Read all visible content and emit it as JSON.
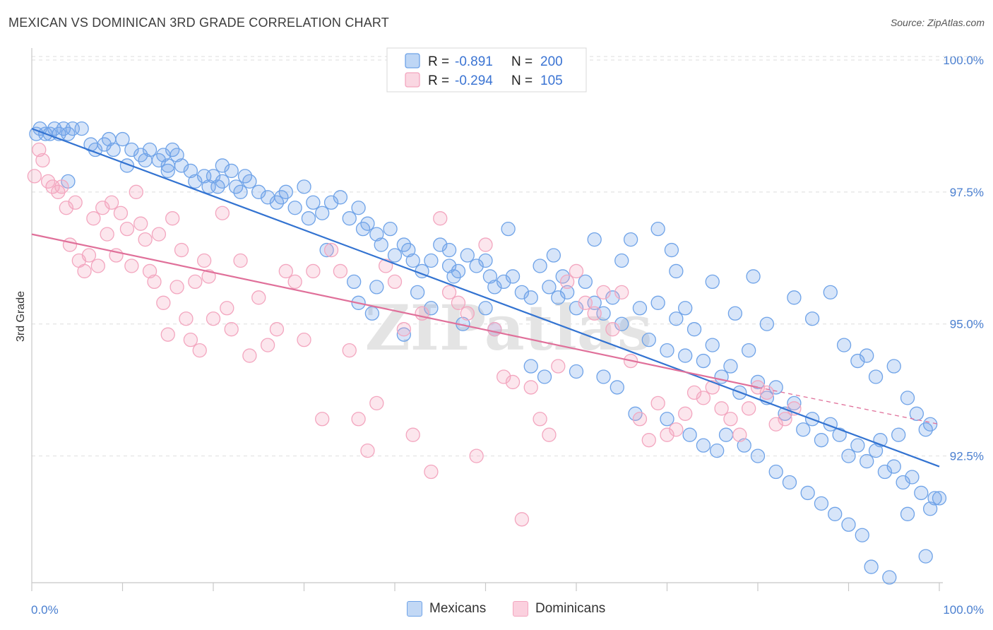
{
  "header": {
    "title": "MEXICAN VS DOMINICAN 3RD GRADE CORRELATION CHART",
    "source": "Source: ZipAtlas.com"
  },
  "watermark": "ZIPatlas",
  "chart_data": {
    "type": "scatter",
    "xlabel": "",
    "ylabel": "3rd Grade",
    "xlim": [
      0,
      100
    ],
    "ylim": [
      90.1,
      100.2
    ],
    "x_tick_labels": [
      "0.0%",
      "100.0%"
    ],
    "y_ticks": [
      92.5,
      95.0,
      97.5,
      100.0
    ],
    "y_tick_labels": [
      "92.5%",
      "95.0%",
      "97.5%",
      "100.0%"
    ],
    "grid": true,
    "legend_position": "top-center",
    "series": [
      {
        "name": "Mexicans",
        "color": "#6fa3e8",
        "line_color": "#3373d1",
        "R": "-0.891",
        "N": "200",
        "trend": {
          "x0": 0,
          "y0": 98.7,
          "x1": 100,
          "y1": 92.3
        },
        "points": [
          [
            0.5,
            98.6
          ],
          [
            0.9,
            98.7
          ],
          [
            1.5,
            98.6
          ],
          [
            2.0,
            98.6
          ],
          [
            2.5,
            98.7
          ],
          [
            3.0,
            98.6
          ],
          [
            3.5,
            98.7
          ],
          [
            4.0,
            98.6
          ],
          [
            4.5,
            98.7
          ],
          [
            5.5,
            98.7
          ],
          [
            6.5,
            98.4
          ],
          [
            7.0,
            98.3
          ],
          [
            8.0,
            98.4
          ],
          [
            8.5,
            98.5
          ],
          [
            9.0,
            98.3
          ],
          [
            10.0,
            98.5
          ],
          [
            11.0,
            98.3
          ],
          [
            12.0,
            98.2
          ],
          [
            12.5,
            98.1
          ],
          [
            13.0,
            98.3
          ],
          [
            14.0,
            98.1
          ],
          [
            14.5,
            98.2
          ],
          [
            15.0,
            98.0
          ],
          [
            15.5,
            98.3
          ],
          [
            16.0,
            98.2
          ],
          [
            16.5,
            98.0
          ],
          [
            17.5,
            97.9
          ],
          [
            18.0,
            97.7
          ],
          [
            19.0,
            97.8
          ],
          [
            19.5,
            97.6
          ],
          [
            20.0,
            97.8
          ],
          [
            20.5,
            97.6
          ],
          [
            21.0,
            97.7
          ],
          [
            22.0,
            97.9
          ],
          [
            22.5,
            97.6
          ],
          [
            23.0,
            97.5
          ],
          [
            24.0,
            97.7
          ],
          [
            25.0,
            97.5
          ],
          [
            26.0,
            97.4
          ],
          [
            27.0,
            97.3
          ],
          [
            28.0,
            97.5
          ],
          [
            29.0,
            97.2
          ],
          [
            30.0,
            97.6
          ],
          [
            31.0,
            97.3
          ],
          [
            32.0,
            97.1
          ],
          [
            33.0,
            97.3
          ],
          [
            34.0,
            97.4
          ],
          [
            35.0,
            97.0
          ],
          [
            36.0,
            97.2
          ],
          [
            36.5,
            96.8
          ],
          [
            37.0,
            96.9
          ],
          [
            38.0,
            96.7
          ],
          [
            38.5,
            96.5
          ],
          [
            39.5,
            96.8
          ],
          [
            40.0,
            96.3
          ],
          [
            41.0,
            96.5
          ],
          [
            41.5,
            96.4
          ],
          [
            42.0,
            96.2
          ],
          [
            43.0,
            96.0
          ],
          [
            44.0,
            96.2
          ],
          [
            45.0,
            96.5
          ],
          [
            46.0,
            96.1
          ],
          [
            46.5,
            95.9
          ],
          [
            47.0,
            96.0
          ],
          [
            48.0,
            96.3
          ],
          [
            49.0,
            96.1
          ],
          [
            50.0,
            96.2
          ],
          [
            50.5,
            95.9
          ],
          [
            51.0,
            95.7
          ],
          [
            52.0,
            95.8
          ],
          [
            53.0,
            95.9
          ],
          [
            54.0,
            95.6
          ],
          [
            55.0,
            95.5
          ],
          [
            56.0,
            96.1
          ],
          [
            57.0,
            95.7
          ],
          [
            58.0,
            95.5
          ],
          [
            59.0,
            95.6
          ],
          [
            60.0,
            95.3
          ],
          [
            61.0,
            95.8
          ],
          [
            62.0,
            95.4
          ],
          [
            63.0,
            95.2
          ],
          [
            64.0,
            95.5
          ],
          [
            65.0,
            95.0
          ],
          [
            66.0,
            96.6
          ],
          [
            67.0,
            95.3
          ],
          [
            68.0,
            94.7
          ],
          [
            69.0,
            95.4
          ],
          [
            70.0,
            94.5
          ],
          [
            71.0,
            95.1
          ],
          [
            72.0,
            94.4
          ],
          [
            73.0,
            94.9
          ],
          [
            74.0,
            94.3
          ],
          [
            75.0,
            94.6
          ],
          [
            76.0,
            94.0
          ],
          [
            77.0,
            94.2
          ],
          [
            78.0,
            93.7
          ],
          [
            79.0,
            94.5
          ],
          [
            80.0,
            93.9
          ],
          [
            81.0,
            93.6
          ],
          [
            82.0,
            93.8
          ],
          [
            83.0,
            93.3
          ],
          [
            84.0,
            93.5
          ],
          [
            85.0,
            93.0
          ],
          [
            86.0,
            93.2
          ],
          [
            87.0,
            92.8
          ],
          [
            88.0,
            93.1
          ],
          [
            89.0,
            92.9
          ],
          [
            90.0,
            92.5
          ],
          [
            91.0,
            92.7
          ],
          [
            92.0,
            92.4
          ],
          [
            93.0,
            92.6
          ],
          [
            94.0,
            92.2
          ],
          [
            95.0,
            92.3
          ],
          [
            96.0,
            92.0
          ],
          [
            97.0,
            92.1
          ],
          [
            98.0,
            91.8
          ],
          [
            99.0,
            91.5
          ],
          [
            100.0,
            91.7
          ],
          [
            4.0,
            97.7
          ],
          [
            10.5,
            98.0
          ],
          [
            15.0,
            97.9
          ],
          [
            21.0,
            98.0
          ],
          [
            23.5,
            97.8
          ],
          [
            27.5,
            97.4
          ],
          [
            30.5,
            97.0
          ],
          [
            32.5,
            96.4
          ],
          [
            35.5,
            95.8
          ],
          [
            36.0,
            95.4
          ],
          [
            37.5,
            95.2
          ],
          [
            41.0,
            94.8
          ],
          [
            44.0,
            95.3
          ],
          [
            47.5,
            95.0
          ],
          [
            50.0,
            95.3
          ],
          [
            51.0,
            94.9
          ],
          [
            55.0,
            94.2
          ],
          [
            56.5,
            94.0
          ],
          [
            60.0,
            94.1
          ],
          [
            63.0,
            94.0
          ],
          [
            64.5,
            93.8
          ],
          [
            66.5,
            93.3
          ],
          [
            70.0,
            93.2
          ],
          [
            72.5,
            92.9
          ],
          [
            74.0,
            92.7
          ],
          [
            75.5,
            92.6
          ],
          [
            76.5,
            92.9
          ],
          [
            78.5,
            92.7
          ],
          [
            80.0,
            92.5
          ],
          [
            82.0,
            92.2
          ],
          [
            83.5,
            92.0
          ],
          [
            85.5,
            91.8
          ],
          [
            87.0,
            91.6
          ],
          [
            88.5,
            91.4
          ],
          [
            90.0,
            91.2
          ],
          [
            91.5,
            91.0
          ],
          [
            92.5,
            90.4
          ],
          [
            94.5,
            90.2
          ],
          [
            96.5,
            91.4
          ],
          [
            98.5,
            90.6
          ],
          [
            99.5,
            91.7
          ],
          [
            38.0,
            95.7
          ],
          [
            42.5,
            95.6
          ],
          [
            46.0,
            96.4
          ],
          [
            52.5,
            96.8
          ],
          [
            57.5,
            96.3
          ],
          [
            58.5,
            95.9
          ],
          [
            62.0,
            96.6
          ],
          [
            65.0,
            96.2
          ],
          [
            69.0,
            96.8
          ],
          [
            70.5,
            96.4
          ],
          [
            71.0,
            96.0
          ],
          [
            72.0,
            95.3
          ],
          [
            75.0,
            95.8
          ],
          [
            77.5,
            95.2
          ],
          [
            79.5,
            95.9
          ],
          [
            81.0,
            95.0
          ],
          [
            84.0,
            95.5
          ],
          [
            86.0,
            95.1
          ],
          [
            88.0,
            95.6
          ],
          [
            89.5,
            94.6
          ],
          [
            91.0,
            94.3
          ],
          [
            92.0,
            94.4
          ],
          [
            93.0,
            94.0
          ],
          [
            95.0,
            94.2
          ],
          [
            96.5,
            93.6
          ],
          [
            97.5,
            93.3
          ],
          [
            98.5,
            93.0
          ],
          [
            99.0,
            93.1
          ],
          [
            93.5,
            92.8
          ],
          [
            95.5,
            92.9
          ]
        ]
      },
      {
        "name": "Dominicans",
        "color": "#f3a6bf",
        "line_color": "#e0709a",
        "R": "-0.294",
        "N": "105",
        "trend": {
          "x0": 0,
          "y0": 96.7,
          "x1": 80,
          "y1": 93.8
        },
        "trend_dashed": {
          "x0": 80,
          "y0": 93.8,
          "x1": 100,
          "y1": 93.1
        },
        "points": [
          [
            0.3,
            97.8
          ],
          [
            0.8,
            98.3
          ],
          [
            1.2,
            98.1
          ],
          [
            1.8,
            97.7
          ],
          [
            2.3,
            97.6
          ],
          [
            2.9,
            97.5
          ],
          [
            3.3,
            97.6
          ],
          [
            3.8,
            97.2
          ],
          [
            4.2,
            96.5
          ],
          [
            4.8,
            97.3
          ],
          [
            5.2,
            96.2
          ],
          [
            5.8,
            96.0
          ],
          [
            6.3,
            96.3
          ],
          [
            6.8,
            97.0
          ],
          [
            7.3,
            96.1
          ],
          [
            7.8,
            97.2
          ],
          [
            8.3,
            96.7
          ],
          [
            8.8,
            97.3
          ],
          [
            9.3,
            96.3
          ],
          [
            9.8,
            97.1
          ],
          [
            10.5,
            96.8
          ],
          [
            11.0,
            96.1
          ],
          [
            11.5,
            97.5
          ],
          [
            12.0,
            96.9
          ],
          [
            12.5,
            96.6
          ],
          [
            13.0,
            96.0
          ],
          [
            13.5,
            95.8
          ],
          [
            14.0,
            96.7
          ],
          [
            14.5,
            95.4
          ],
          [
            15.0,
            94.8
          ],
          [
            15.5,
            97.0
          ],
          [
            16.0,
            95.7
          ],
          [
            16.5,
            96.4
          ],
          [
            17.0,
            95.1
          ],
          [
            17.5,
            94.7
          ],
          [
            18.0,
            95.8
          ],
          [
            18.5,
            94.5
          ],
          [
            19.0,
            96.2
          ],
          [
            19.5,
            95.9
          ],
          [
            20.0,
            95.1
          ],
          [
            21.0,
            97.1
          ],
          [
            21.5,
            95.3
          ],
          [
            22.0,
            94.9
          ],
          [
            23.0,
            96.2
          ],
          [
            24.0,
            94.4
          ],
          [
            25.0,
            95.5
          ],
          [
            26.0,
            94.6
          ],
          [
            27.0,
            94.9
          ],
          [
            28.0,
            96.0
          ],
          [
            29.0,
            95.8
          ],
          [
            30.0,
            94.7
          ],
          [
            31.0,
            96.0
          ],
          [
            32.0,
            93.2
          ],
          [
            33.0,
            96.4
          ],
          [
            34.0,
            96.0
          ],
          [
            35.0,
            94.5
          ],
          [
            36.0,
            93.2
          ],
          [
            37.0,
            92.6
          ],
          [
            38.0,
            93.5
          ],
          [
            39.0,
            96.1
          ],
          [
            40.0,
            95.8
          ],
          [
            41.0,
            94.9
          ],
          [
            42.0,
            92.9
          ],
          [
            43.0,
            95.2
          ],
          [
            44.0,
            92.2
          ],
          [
            45.0,
            97.0
          ],
          [
            46.0,
            95.6
          ],
          [
            47.0,
            95.4
          ],
          [
            48.0,
            95.2
          ],
          [
            49.0,
            92.5
          ],
          [
            50.0,
            96.5
          ],
          [
            51.0,
            94.9
          ],
          [
            52.0,
            94.0
          ],
          [
            53.0,
            93.9
          ],
          [
            54.0,
            91.3
          ],
          [
            55.0,
            93.8
          ],
          [
            56.0,
            93.2
          ],
          [
            57.0,
            92.9
          ],
          [
            58.0,
            94.2
          ],
          [
            59.0,
            95.8
          ],
          [
            60.0,
            96.0
          ],
          [
            61.0,
            95.4
          ],
          [
            62.0,
            95.2
          ],
          [
            63.0,
            95.6
          ],
          [
            64.0,
            94.9
          ],
          [
            65.0,
            95.6
          ],
          [
            66.0,
            94.3
          ],
          [
            67.0,
            93.2
          ],
          [
            68.0,
            92.8
          ],
          [
            69.0,
            93.5
          ],
          [
            70.0,
            92.9
          ],
          [
            71.0,
            93.0
          ],
          [
            72.0,
            93.3
          ],
          [
            73.0,
            93.7
          ],
          [
            74.0,
            93.6
          ],
          [
            75.0,
            93.8
          ],
          [
            76.0,
            93.4
          ],
          [
            77.0,
            93.2
          ],
          [
            78.0,
            92.9
          ],
          [
            79.0,
            93.4
          ],
          [
            80.0,
            93.8
          ],
          [
            81.0,
            93.7
          ],
          [
            82.0,
            93.1
          ],
          [
            83.0,
            93.2
          ],
          [
            84.0,
            93.4
          ]
        ]
      }
    ]
  },
  "legend_labels": {
    "r_label": "R =",
    "n_label": "N ="
  },
  "bottom_legend": [
    "Mexicans",
    "Dominicans"
  ]
}
